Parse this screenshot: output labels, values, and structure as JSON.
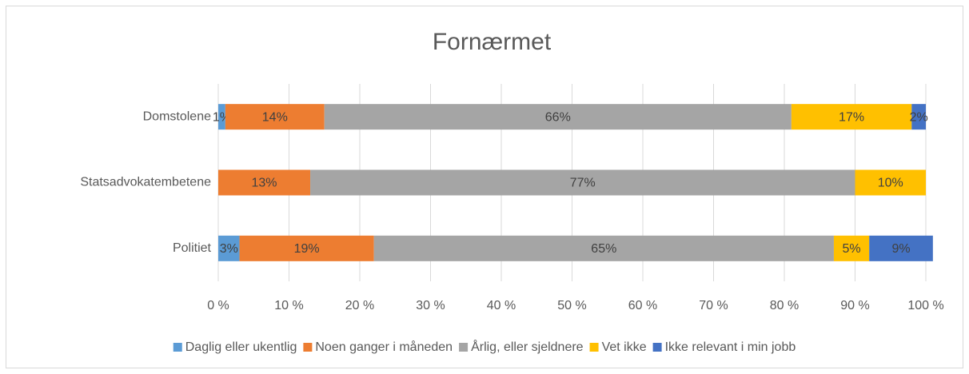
{
  "chart_data": {
    "type": "stacked_barh",
    "title": "Fornærmet",
    "categories": [
      "Domstolene",
      "Statsadvokatembetene",
      "Politiet"
    ],
    "series": [
      {
        "name": "Daglig eller ukentlig",
        "color": "#5b9bd5",
        "values": [
          1,
          null,
          3
        ],
        "value_labels": [
          "1%",
          null,
          "3%"
        ]
      },
      {
        "name": "Noen ganger i måneden",
        "color": "#ed7d31",
        "values": [
          14,
          13,
          19
        ],
        "value_labels": [
          "14%",
          "13%",
          "19%"
        ]
      },
      {
        "name": "Årlig, eller sjeldnere",
        "color": "#a5a5a5",
        "values": [
          66,
          77,
          65
        ],
        "value_labels": [
          "66%",
          "77%",
          "65%"
        ]
      },
      {
        "name": "Vet ikke",
        "color": "#ffc000",
        "values": [
          17,
          10,
          5
        ],
        "value_labels": [
          "17%",
          "10%",
          "5%"
        ]
      },
      {
        "name": "Ikke relevant i min jobb",
        "color": "#4472c4",
        "values": [
          2,
          null,
          9
        ],
        "value_labels": [
          "2%",
          null,
          "9%"
        ]
      }
    ],
    "xlim": [
      0,
      100
    ],
    "xticks": [
      {
        "value": 0,
        "label": "0 %"
      },
      {
        "value": 10,
        "label": "10 %"
      },
      {
        "value": 20,
        "label": "20 %"
      },
      {
        "value": 30,
        "label": "30 %"
      },
      {
        "value": 40,
        "label": "40 %"
      },
      {
        "value": 50,
        "label": "50 %"
      },
      {
        "value": 60,
        "label": "60 %"
      },
      {
        "value": 70,
        "label": "70 %"
      },
      {
        "value": 80,
        "label": "80 %"
      },
      {
        "value": 90,
        "label": "90 %"
      },
      {
        "value": 100,
        "label": "100 %"
      }
    ],
    "grid": true,
    "legend": "bottom"
  }
}
